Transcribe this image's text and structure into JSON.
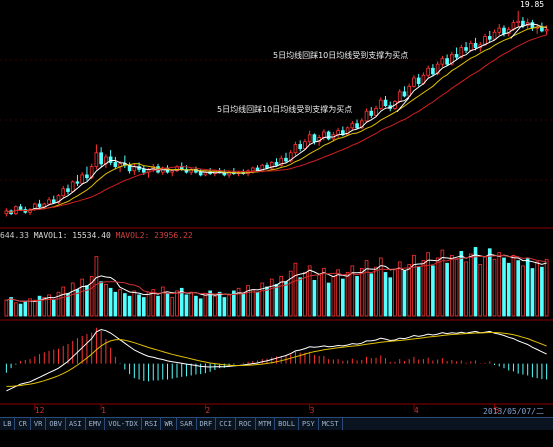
{
  "chart_data": [
    {
      "type": "candlestick",
      "panel": "price",
      "peak_label": "19.85",
      "annotations": [
        {
          "text": "5日均线回踩10日均线受到支撑为买点",
          "index": 82
        },
        {
          "text": "5日均线回踩10日均线受到支撑为买点",
          "index": 106
        }
      ],
      "ohlc": [
        [
          5.2,
          5.6,
          5.0,
          5.4
        ],
        [
          5.4,
          5.5,
          5.1,
          5.2
        ],
        [
          5.2,
          5.8,
          5.1,
          5.7
        ],
        [
          5.7,
          5.9,
          5.4,
          5.5
        ],
        [
          5.5,
          5.7,
          5.2,
          5.3
        ],
        [
          5.3,
          5.6,
          5.1,
          5.5
        ],
        [
          5.5,
          6.0,
          5.4,
          5.9
        ],
        [
          5.9,
          6.2,
          5.6,
          5.7
        ],
        [
          5.7,
          6.0,
          5.5,
          5.9
        ],
        [
          5.9,
          6.4,
          5.8,
          6.2
        ],
        [
          6.2,
          6.5,
          5.9,
          6.0
        ],
        [
          6.0,
          6.6,
          5.9,
          6.5
        ],
        [
          6.5,
          7.2,
          6.3,
          7.0
        ],
        [
          7.0,
          7.3,
          6.6,
          6.8
        ],
        [
          6.8,
          7.6,
          6.7,
          7.5
        ],
        [
          7.5,
          8.0,
          7.2,
          7.4
        ],
        [
          7.4,
          8.2,
          7.3,
          8.0
        ],
        [
          8.0,
          8.6,
          7.6,
          7.8
        ],
        [
          7.8,
          8.8,
          7.7,
          8.6
        ],
        [
          8.6,
          10.2,
          8.4,
          9.6
        ],
        [
          9.6,
          10.0,
          8.6,
          8.8
        ],
        [
          8.8,
          9.5,
          8.5,
          9.3
        ],
        [
          9.3,
          9.8,
          8.7,
          8.9
        ],
        [
          8.9,
          9.3,
          8.4,
          8.6
        ],
        [
          8.6,
          9.0,
          8.2,
          8.8
        ],
        [
          8.8,
          9.4,
          8.5,
          8.7
        ],
        [
          8.7,
          8.9,
          8.1,
          8.3
        ],
        [
          8.3,
          8.8,
          8.0,
          8.6
        ],
        [
          8.6,
          8.9,
          8.2,
          8.4
        ],
        [
          8.4,
          8.7,
          8.0,
          8.2
        ],
        [
          8.2,
          8.5,
          7.8,
          8.4
        ],
        [
          8.4,
          8.8,
          8.2,
          8.6
        ],
        [
          8.6,
          8.8,
          8.1,
          8.2
        ],
        [
          8.2,
          8.6,
          8.0,
          8.5
        ],
        [
          8.5,
          8.7,
          8.1,
          8.2
        ],
        [
          8.2,
          8.4,
          7.9,
          8.3
        ],
        [
          8.3,
          8.7,
          8.2,
          8.6
        ],
        [
          8.6,
          8.9,
          8.3,
          8.4
        ],
        [
          8.4,
          8.7,
          8.1,
          8.2
        ],
        [
          8.2,
          8.5,
          8.0,
          8.4
        ],
        [
          8.4,
          8.6,
          8.1,
          8.2
        ],
        [
          8.2,
          8.4,
          7.9,
          8.0
        ],
        [
          8.0,
          8.3,
          7.9,
          8.2
        ],
        [
          8.2,
          8.5,
          8.0,
          8.1
        ],
        [
          8.1,
          8.4,
          7.9,
          8.3
        ],
        [
          8.3,
          8.5,
          8.1,
          8.2
        ],
        [
          8.2,
          8.4,
          7.9,
          8.0
        ],
        [
          8.0,
          8.3,
          7.8,
          8.2
        ],
        [
          8.2,
          8.5,
          8.0,
          8.1
        ],
        [
          8.1,
          8.3,
          7.9,
          8.2
        ],
        [
          8.2,
          8.4,
          8.0,
          8.1
        ],
        [
          8.1,
          8.4,
          7.9,
          8.3
        ],
        [
          8.3,
          8.6,
          8.1,
          8.5
        ],
        [
          8.5,
          8.7,
          8.2,
          8.3
        ],
        [
          8.3,
          8.8,
          8.2,
          8.7
        ],
        [
          8.7,
          8.9,
          8.4,
          8.5
        ],
        [
          8.5,
          9.0,
          8.4,
          8.9
        ],
        [
          8.9,
          9.2,
          8.6,
          8.7
        ],
        [
          8.7,
          9.4,
          8.6,
          9.2
        ],
        [
          9.2,
          9.6,
          8.9,
          9.0
        ],
        [
          9.0,
          9.8,
          8.9,
          9.6
        ],
        [
          9.6,
          10.4,
          9.4,
          10.2
        ],
        [
          10.2,
          10.5,
          9.7,
          9.9
        ],
        [
          9.9,
          10.6,
          9.8,
          10.4
        ],
        [
          10.4,
          11.2,
          10.2,
          10.9
        ],
        [
          10.9,
          11.0,
          10.2,
          10.4
        ],
        [
          10.4,
          10.9,
          10.1,
          10.7
        ],
        [
          10.7,
          11.3,
          10.5,
          11.1
        ],
        [
          11.1,
          11.2,
          10.5,
          10.6
        ],
        [
          10.6,
          11.1,
          10.4,
          10.9
        ],
        [
          10.9,
          11.4,
          10.7,
          11.2
        ],
        [
          11.2,
          11.5,
          10.8,
          10.9
        ],
        [
          10.9,
          11.5,
          10.8,
          11.4
        ],
        [
          11.4,
          11.9,
          11.2,
          11.7
        ],
        [
          11.7,
          12.0,
          11.3,
          11.4
        ],
        [
          11.4,
          12.1,
          11.3,
          11.9
        ],
        [
          11.9,
          12.8,
          11.8,
          12.6
        ],
        [
          12.6,
          12.9,
          12.1,
          12.3
        ],
        [
          12.3,
          13.0,
          12.2,
          12.8
        ],
        [
          12.8,
          13.6,
          12.7,
          13.4
        ],
        [
          13.4,
          13.7,
          12.9,
          13.0
        ],
        [
          13.0,
          13.3,
          12.6,
          12.8
        ],
        [
          12.8,
          13.4,
          12.7,
          13.3
        ],
        [
          13.3,
          14.2,
          13.2,
          14.0
        ],
        [
          14.0,
          14.4,
          13.6,
          13.7
        ],
        [
          13.7,
          14.6,
          13.6,
          14.4
        ],
        [
          14.4,
          15.2,
          14.3,
          15.0
        ],
        [
          15.0,
          15.3,
          14.4,
          14.6
        ],
        [
          14.6,
          15.4,
          14.5,
          15.2
        ],
        [
          15.2,
          15.9,
          15.0,
          15.7
        ],
        [
          15.7,
          16.0,
          15.1,
          15.3
        ],
        [
          15.3,
          16.2,
          15.2,
          16.0
        ],
        [
          16.0,
          16.6,
          15.8,
          16.4
        ],
        [
          16.4,
          16.7,
          15.9,
          16.0
        ],
        [
          16.0,
          16.9,
          15.9,
          16.7
        ],
        [
          16.7,
          17.2,
          16.3,
          16.5
        ],
        [
          16.5,
          17.4,
          16.4,
          17.2
        ],
        [
          17.2,
          17.6,
          16.8,
          17.0
        ],
        [
          17.0,
          17.7,
          16.9,
          17.5
        ],
        [
          17.5,
          17.9,
          17.0,
          17.2
        ],
        [
          17.2,
          17.6,
          16.9,
          17.4
        ],
        [
          17.4,
          18.2,
          17.3,
          18.0
        ],
        [
          18.0,
          18.4,
          17.6,
          17.8
        ],
        [
          17.8,
          18.5,
          17.7,
          18.3
        ],
        [
          18.3,
          18.9,
          18.1,
          18.6
        ],
        [
          18.6,
          18.8,
          18.0,
          18.2
        ],
        [
          18.2,
          18.7,
          18.0,
          18.5
        ],
        [
          18.5,
          19.2,
          18.4,
          19.0
        ],
        [
          19.0,
          19.85,
          18.7,
          19.1
        ],
        [
          19.1,
          19.4,
          18.6,
          18.8
        ],
        [
          18.8,
          19.3,
          18.5,
          19.0
        ],
        [
          19.0,
          19.2,
          18.4,
          18.6
        ],
        [
          18.6,
          18.9,
          18.2,
          18.7
        ],
        [
          18.7,
          19.0,
          18.3,
          18.4
        ],
        [
          18.4,
          18.8,
          18.1,
          18.5
        ]
      ],
      "ma5_label": "",
      "ma10_label": ""
    },
    {
      "type": "bar",
      "panel": "volume",
      "header": {
        "prefix": "644.33",
        "mavol1": "MAVOL1: 15534.40",
        "mavol2": "MAVOL2: 23956.22"
      },
      "values": [
        12,
        14,
        10,
        9,
        11,
        13,
        12,
        15,
        14,
        16,
        12,
        18,
        22,
        17,
        25,
        20,
        28,
        23,
        30,
        45,
        26,
        24,
        21,
        18,
        20,
        17,
        15,
        19,
        16,
        14,
        18,
        20,
        15,
        22,
        17,
        14,
        19,
        21,
        16,
        18,
        15,
        13,
        17,
        19,
        15,
        18,
        14,
        16,
        19,
        21,
        17,
        23,
        20,
        18,
        25,
        22,
        28,
        24,
        30,
        26,
        34,
        40,
        29,
        33,
        38,
        27,
        31,
        36,
        25,
        30,
        35,
        28,
        33,
        38,
        30,
        36,
        42,
        32,
        37,
        44,
        33,
        29,
        35,
        41,
        34,
        39,
        46,
        37,
        42,
        48,
        38,
        44,
        50,
        40,
        46,
        43,
        49,
        41,
        47,
        52,
        39,
        45,
        51,
        43,
        48,
        44,
        40,
        46,
        42,
        38,
        44,
        36,
        41,
        37,
        43
      ],
      "up": [
        true,
        false,
        true,
        false,
        false,
        true,
        true,
        false,
        true,
        true,
        false,
        true,
        true,
        false,
        true,
        false,
        true,
        false,
        true,
        true,
        false,
        true,
        false,
        false,
        true,
        false,
        false,
        true,
        false,
        false,
        true,
        true,
        false,
        true,
        false,
        true,
        true,
        false,
        false,
        true,
        false,
        false,
        true,
        false,
        true,
        false,
        false,
        true,
        false,
        true,
        false,
        true,
        true,
        false,
        true,
        false,
        true,
        false,
        true,
        false,
        true,
        true,
        false,
        true,
        true,
        false,
        true,
        true,
        false,
        true,
        true,
        false,
        true,
        true,
        false,
        true,
        true,
        false,
        true,
        true,
        false,
        false,
        true,
        true,
        false,
        true,
        true,
        false,
        true,
        true,
        false,
        true,
        true,
        false,
        true,
        true,
        false,
        true,
        true,
        false,
        true,
        true,
        false,
        true,
        true,
        false,
        false,
        true,
        false,
        true,
        false,
        false,
        true,
        false,
        true
      ]
    },
    {
      "type": "line",
      "panel": "macd",
      "dif": [
        -1.2,
        -1.1,
        -1.0,
        -0.9,
        -0.85,
        -0.8,
        -0.7,
        -0.6,
        -0.5,
        -0.4,
        -0.3,
        -0.2,
        -0.05,
        0.1,
        0.3,
        0.5,
        0.7,
        0.9,
        1.1,
        1.4,
        1.5,
        1.45,
        1.35,
        1.2,
        1.05,
        0.9,
        0.75,
        0.6,
        0.5,
        0.4,
        0.32,
        0.28,
        0.22,
        0.18,
        0.12,
        0.08,
        0.05,
        0.02,
        -0.02,
        -0.05,
        -0.08,
        -0.12,
        -0.14,
        -0.15,
        -0.14,
        -0.13,
        -0.14,
        -0.12,
        -0.1,
        -0.08,
        -0.06,
        -0.03,
        0.0,
        0.03,
        0.08,
        0.12,
        0.18,
        0.24,
        0.3,
        0.36,
        0.44,
        0.56,
        0.6,
        0.66,
        0.74,
        0.72,
        0.74,
        0.78,
        0.74,
        0.76,
        0.8,
        0.78,
        0.82,
        0.88,
        0.86,
        0.9,
        1.0,
        1.0,
        1.04,
        1.12,
        1.08,
        1.02,
        1.04,
        1.12,
        1.1,
        1.16,
        1.24,
        1.2,
        1.24,
        1.3,
        1.26,
        1.3,
        1.36,
        1.32,
        1.36,
        1.34,
        1.38,
        1.34,
        1.38,
        1.42,
        1.36,
        1.38,
        1.42,
        1.34,
        1.3,
        1.24,
        1.16,
        1.1,
        1.0,
        0.92,
        0.84,
        0.72,
        0.62,
        0.52,
        0.42
      ],
      "dea": [
        -1.0,
        -1.0,
        -0.98,
        -0.96,
        -0.93,
        -0.9,
        -0.86,
        -0.81,
        -0.75,
        -0.68,
        -0.61,
        -0.53,
        -0.44,
        -0.33,
        -0.2,
        -0.06,
        0.09,
        0.25,
        0.42,
        0.61,
        0.78,
        0.91,
        1.0,
        1.05,
        1.06,
        1.03,
        0.98,
        0.92,
        0.85,
        0.78,
        0.71,
        0.65,
        0.59,
        0.53,
        0.47,
        0.41,
        0.36,
        0.31,
        0.26,
        0.21,
        0.16,
        0.11,
        0.07,
        0.03,
        0.0,
        -0.03,
        -0.05,
        -0.07,
        -0.08,
        -0.08,
        -0.08,
        -0.07,
        -0.06,
        -0.04,
        -0.02,
        0.01,
        0.04,
        0.08,
        0.13,
        0.18,
        0.24,
        0.3,
        0.36,
        0.42,
        0.48,
        0.53,
        0.57,
        0.61,
        0.64,
        0.67,
        0.7,
        0.72,
        0.75,
        0.77,
        0.79,
        0.82,
        0.85,
        0.88,
        0.91,
        0.94,
        0.96,
        0.98,
        1.0,
        1.02,
        1.04,
        1.06,
        1.09,
        1.11,
        1.14,
        1.17,
        1.19,
        1.21,
        1.24,
        1.26,
        1.28,
        1.29,
        1.31,
        1.32,
        1.33,
        1.35,
        1.35,
        1.36,
        1.37,
        1.37,
        1.36,
        1.34,
        1.31,
        1.27,
        1.22,
        1.16,
        1.1,
        1.02,
        0.94,
        0.86,
        0.77
      ]
    }
  ],
  "date_axis": {
    "labels": [
      {
        "text": "12",
        "index": 6
      },
      {
        "text": "1",
        "index": 20
      },
      {
        "text": "2",
        "index": 42
      },
      {
        "text": "3",
        "index": 64
      },
      {
        "text": "4",
        "index": 86
      },
      {
        "text": "5",
        "index": 103
      }
    ],
    "end_label": "2013/05/07/二"
  },
  "indicator_tabs": [
    "LB",
    "CR",
    "VR",
    "OBV",
    "ASI",
    "EMV",
    "VOL-TDX",
    "RSI",
    "WR",
    "SAR",
    "DRF",
    "CCI",
    "ROC",
    "MTM",
    "BOLL",
    "PSY",
    "MCST"
  ],
  "colors": {
    "up": "#ff3232",
    "down": "#54ffff",
    "ma5": "#ffffff",
    "ma10": "#e0c000",
    "ma20": "#d02020",
    "dif": "#ffffff",
    "dea": "#e0c000",
    "grid": "#8b0000"
  }
}
